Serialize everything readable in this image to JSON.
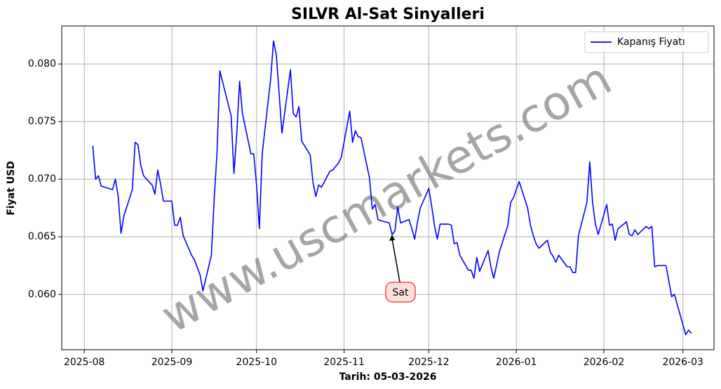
{
  "chart_data": {
    "type": "line",
    "title": "SILVR Al-Sat Sinyalleri",
    "xlabel": "Tarih: 05-03-2026",
    "ylabel": "Fiyat USD",
    "watermark": "www.uscmarkets.com",
    "x": [
      "2025-08-04",
      "2025-08-05",
      "2025-08-06",
      "2025-08-07",
      "2025-08-11",
      "2025-08-12",
      "2025-08-13",
      "2025-08-14",
      "2025-08-15",
      "2025-08-18",
      "2025-08-19",
      "2025-08-20",
      "2025-08-21",
      "2025-08-22",
      "2025-08-25",
      "2025-08-26",
      "2025-08-27",
      "2025-08-28",
      "2025-08-29",
      "2025-09-01",
      "2025-09-02",
      "2025-09-03",
      "2025-09-04",
      "2025-09-05",
      "2025-09-08",
      "2025-09-09",
      "2025-09-11",
      "2025-09-12",
      "2025-09-15",
      "2025-09-16",
      "2025-09-17",
      "2025-09-18",
      "2025-09-22",
      "2025-09-23",
      "2025-09-24",
      "2025-09-25",
      "2025-09-26",
      "2025-09-29",
      "2025-09-30",
      "2025-10-01",
      "2025-10-02",
      "2025-10-03",
      "2025-10-06",
      "2025-10-07",
      "2025-10-08",
      "2025-10-10",
      "2025-10-13",
      "2025-10-14",
      "2025-10-15",
      "2025-10-16",
      "2025-10-17",
      "2025-10-20",
      "2025-10-21",
      "2025-10-22",
      "2025-10-23",
      "2025-10-24",
      "2025-10-27",
      "2025-10-28",
      "2025-10-29",
      "2025-10-30",
      "2025-10-31",
      "2025-11-03",
      "2025-11-04",
      "2025-11-05",
      "2025-11-06",
      "2025-11-07",
      "2025-11-10",
      "2025-11-11",
      "2025-11-12",
      "2025-11-13",
      "2025-11-14",
      "2025-11-17",
      "2025-11-18",
      "2025-11-19",
      "2025-11-20",
      "2025-11-21",
      "2025-11-24",
      "2025-11-25",
      "2025-11-26",
      "2025-11-27",
      "2025-11-28",
      "2025-12-01",
      "2025-12-02",
      "2025-12-03",
      "2025-12-04",
      "2025-12-05",
      "2025-12-08",
      "2025-12-09",
      "2025-12-10",
      "2025-12-11",
      "2025-12-12",
      "2025-12-15",
      "2025-12-16",
      "2025-12-17",
      "2025-12-18",
      "2025-12-19",
      "2025-12-22",
      "2025-12-23",
      "2025-12-24",
      "2025-12-26",
      "2025-12-29",
      "2025-12-30",
      "2025-12-31",
      "2026-01-02",
      "2026-01-05",
      "2026-01-06",
      "2026-01-07",
      "2026-01-08",
      "2026-01-09",
      "2026-01-12",
      "2026-01-13",
      "2026-01-14",
      "2026-01-15",
      "2026-01-16",
      "2026-01-19",
      "2026-01-20",
      "2026-01-21",
      "2026-01-22",
      "2026-01-23",
      "2026-01-26",
      "2026-01-27",
      "2026-01-28",
      "2026-01-29",
      "2026-01-30",
      "2026-02-02",
      "2026-02-03",
      "2026-02-04",
      "2026-02-05",
      "2026-02-06",
      "2026-02-09",
      "2026-02-10",
      "2026-02-11",
      "2026-02-12",
      "2026-02-13",
      "2026-02-16",
      "2026-02-17",
      "2026-02-18",
      "2026-02-19",
      "2026-02-20",
      "2026-02-23",
      "2026-02-24",
      "2026-02-25",
      "2026-02-26",
      "2026-02-27",
      "2026-03-02",
      "2026-03-03",
      "2026-03-04"
    ],
    "series": [
      {
        "name": "Kapanış Fiyatı",
        "color": "#0000ff",
        "values": [
          0.0729,
          0.07,
          0.0703,
          0.0694,
          0.0691,
          0.07,
          0.0685,
          0.0653,
          0.0668,
          0.0691,
          0.0732,
          0.073,
          0.0712,
          0.0703,
          0.0695,
          0.0687,
          0.0708,
          0.0696,
          0.0681,
          0.0681,
          0.066,
          0.066,
          0.0667,
          0.0651,
          0.0634,
          0.063,
          0.0617,
          0.0603,
          0.0634,
          0.0683,
          0.0723,
          0.0794,
          0.0755,
          0.0705,
          0.074,
          0.0785,
          0.0757,
          0.0722,
          0.0722,
          0.0695,
          0.0657,
          0.0722,
          0.0787,
          0.082,
          0.0808,
          0.074,
          0.0795,
          0.0757,
          0.0754,
          0.0763,
          0.0733,
          0.0721,
          0.0697,
          0.0685,
          0.0695,
          0.0693,
          0.0707,
          0.0708,
          0.0711,
          0.0714,
          0.0719,
          0.0759,
          0.0732,
          0.0742,
          0.0737,
          0.0736,
          0.0701,
          0.0674,
          0.0678,
          0.0665,
          0.0664,
          0.0662,
          0.0652,
          0.0655,
          0.0676,
          0.0662,
          0.0665,
          0.0657,
          0.0648,
          0.0663,
          0.0675,
          0.0692,
          0.0677,
          0.066,
          0.0648,
          0.0661,
          0.0661,
          0.066,
          0.0644,
          0.0645,
          0.0634,
          0.0621,
          0.0621,
          0.0614,
          0.0632,
          0.062,
          0.0638,
          0.0624,
          0.0614,
          0.0637,
          0.066,
          0.068,
          0.0684,
          0.0698,
          0.0675,
          0.066,
          0.0651,
          0.0644,
          0.064,
          0.0647,
          0.0637,
          0.0633,
          0.0628,
          0.0634,
          0.0624,
          0.0624,
          0.0619,
          0.0619,
          0.0651,
          0.068,
          0.0715,
          0.068,
          0.0661,
          0.0652,
          0.0678,
          0.066,
          0.0661,
          0.0647,
          0.0657,
          0.0663,
          0.0652,
          0.0651,
          0.0656,
          0.0652,
          0.0659,
          0.0657,
          0.0659,
          0.0624,
          0.0625,
          0.0625,
          0.0612,
          0.0598,
          0.06,
          0.0591,
          0.0565,
          0.0569,
          0.0566
        ]
      }
    ],
    "annotations": [
      {
        "text": "Sat",
        "x": "2025-11-18",
        "y": 0.0652
      }
    ],
    "xlim": [
      "2025-07-24",
      "2026-03-12"
    ],
    "xticks": [
      "2025-08",
      "2025-09",
      "2025-10",
      "2025-11",
      "2025-12",
      "2026-01",
      "2026-02",
      "2026-03"
    ],
    "ylim": [
      0.0552,
      0.0833
    ],
    "yticks": [
      {
        "value": 0.06,
        "label": "0.060"
      },
      {
        "value": 0.065,
        "label": "0.065"
      },
      {
        "value": 0.07,
        "label": "0.070"
      },
      {
        "value": 0.075,
        "label": "0.075"
      },
      {
        "value": 0.08,
        "label": "0.080"
      }
    ],
    "grid": true,
    "legend": "upper right"
  }
}
